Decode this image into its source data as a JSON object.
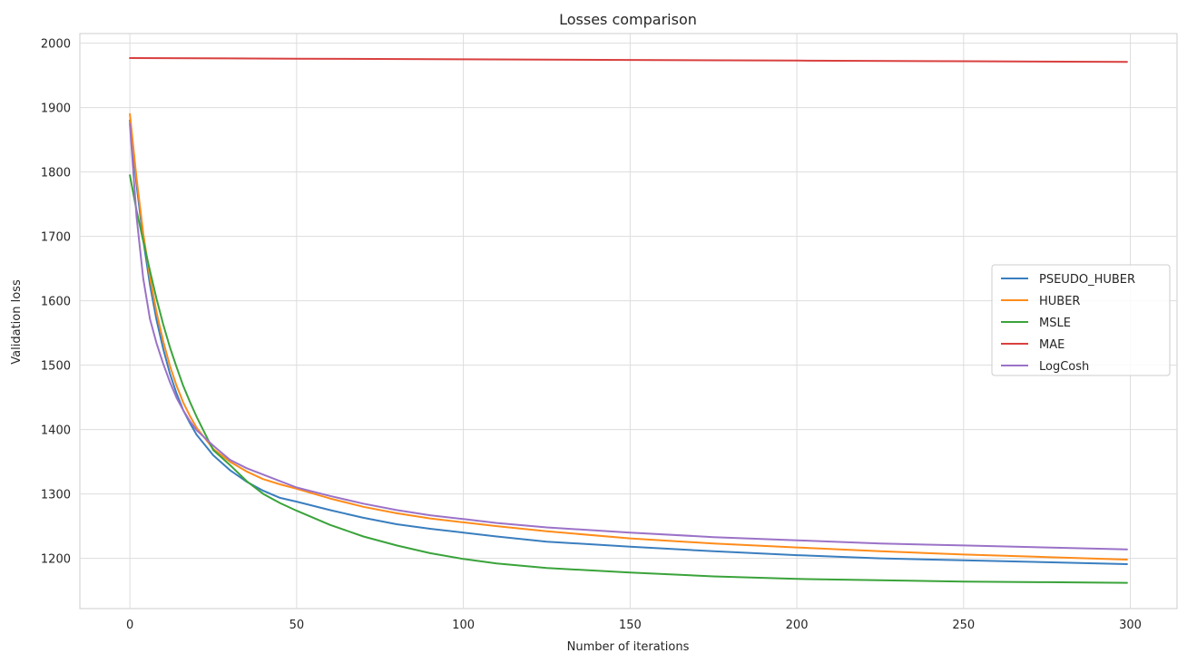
{
  "chart_data": {
    "type": "line",
    "title": "Losses comparison",
    "xlabel": "Number of iterations",
    "ylabel": "Validation loss",
    "xlim": [
      -15,
      314
    ],
    "ylim": [
      1122,
      2015
    ],
    "xticks": [
      0,
      50,
      100,
      150,
      200,
      250,
      300
    ],
    "yticks": [
      1200,
      1300,
      1400,
      1500,
      1600,
      1700,
      1800,
      1900,
      2000
    ],
    "grid": true,
    "legend_position": "center-right",
    "series": [
      {
        "name": "PSEUDO_HUBER",
        "color": "#3a7ebf",
        "x": [
          0,
          2,
          4,
          6,
          8,
          10,
          12,
          14,
          16,
          18,
          20,
          25,
          30,
          35,
          40,
          45,
          50,
          60,
          70,
          80,
          90,
          100,
          110,
          125,
          150,
          175,
          200,
          225,
          250,
          275,
          299
        ],
        "y": [
          1880,
          1780,
          1695,
          1625,
          1570,
          1525,
          1487,
          1456,
          1430,
          1410,
          1392,
          1360,
          1337,
          1319,
          1305,
          1294,
          1288,
          1275,
          1263,
          1253,
          1246,
          1240,
          1234,
          1226,
          1218,
          1211,
          1205,
          1200,
          1197,
          1194,
          1191
        ]
      },
      {
        "name": "HUBER",
        "color": "#ff8c1a",
        "x": [
          0,
          2,
          4,
          6,
          8,
          10,
          12,
          14,
          16,
          18,
          20,
          25,
          30,
          35,
          40,
          45,
          50,
          60,
          70,
          80,
          90,
          100,
          110,
          125,
          150,
          175,
          200,
          225,
          250,
          275,
          299
        ],
        "y": [
          1890,
          1790,
          1705,
          1637,
          1582,
          1537,
          1499,
          1468,
          1442,
          1421,
          1403,
          1370,
          1350,
          1335,
          1323,
          1315,
          1308,
          1293,
          1280,
          1270,
          1262,
          1256,
          1250,
          1242,
          1231,
          1223,
          1217,
          1211,
          1206,
          1202,
          1198
        ]
      },
      {
        "name": "MSLE",
        "color": "#3aa33a",
        "x": [
          0,
          2,
          4,
          6,
          8,
          10,
          12,
          14,
          16,
          18,
          20,
          25,
          30,
          35,
          40,
          45,
          50,
          60,
          70,
          80,
          90,
          100,
          110,
          125,
          150,
          175,
          200,
          225,
          250,
          275,
          299
        ],
        "y": [
          1795,
          1740,
          1693,
          1647,
          1603,
          1563,
          1528,
          1497,
          1468,
          1443,
          1420,
          1368,
          1345,
          1320,
          1300,
          1286,
          1274,
          1252,
          1234,
          1220,
          1208,
          1199,
          1192,
          1185,
          1178,
          1172,
          1168,
          1166,
          1164,
          1163,
          1162
        ]
      },
      {
        "name": "MAE",
        "color": "#d9403f",
        "x": [
          0,
          50,
          100,
          150,
          200,
          250,
          299
        ],
        "y": [
          1977,
          1976,
          1975,
          1974,
          1973,
          1972,
          1971
        ]
      },
      {
        "name": "LogCosh",
        "color": "#9b72c7",
        "x": [
          0,
          2,
          4,
          6,
          8,
          10,
          12,
          14,
          16,
          18,
          20,
          25,
          30,
          35,
          40,
          45,
          50,
          60,
          70,
          80,
          90,
          100,
          110,
          125,
          150,
          175,
          200,
          225,
          250,
          275,
          299
        ],
        "y": [
          1875,
          1730,
          1635,
          1572,
          1534,
          1502,
          1474,
          1449,
          1430,
          1413,
          1399,
          1375,
          1353,
          1340,
          1330,
          1320,
          1310,
          1297,
          1285,
          1275,
          1267,
          1261,
          1255,
          1248,
          1240,
          1233,
          1228,
          1223,
          1220,
          1217,
          1214
        ]
      }
    ]
  }
}
